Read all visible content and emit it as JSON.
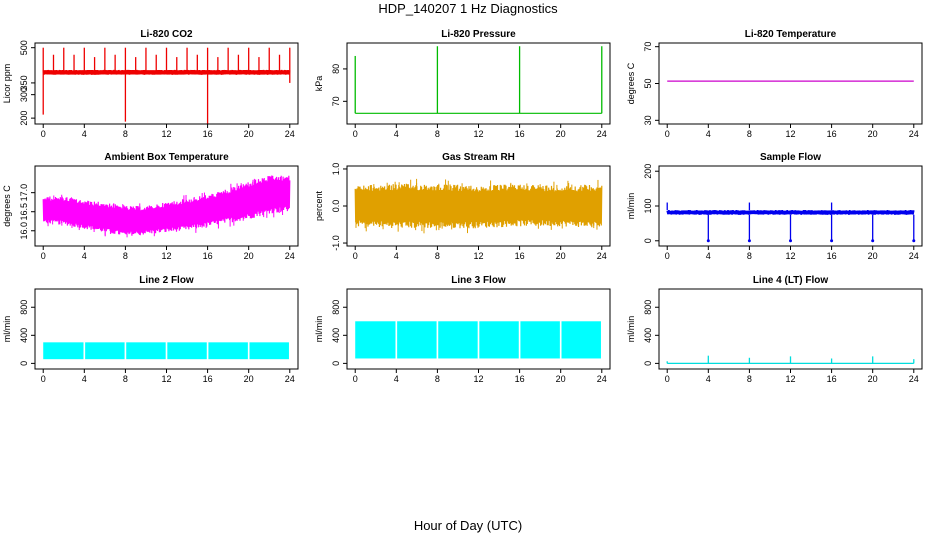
{
  "title": "HDP_140207  1 Hz Diagnostics",
  "xlabel": "Hour of Day (UTC)",
  "chart_data": [
    {
      "id": "co2",
      "type": "line",
      "title": "Li-820 CO2",
      "ylabel": "Licor ppm",
      "color": "#ee0000",
      "ylim": [
        175,
        520
      ],
      "yticks": [
        200,
        300,
        350,
        500
      ],
      "yticklabels": [
        "200",
        "300",
        "350",
        "500"
      ],
      "xlim": [
        -0.8,
        24.8
      ],
      "xticks": [
        0,
        4,
        8,
        12,
        16,
        20,
        24
      ],
      "baseline": 397,
      "band": [
        385,
        405
      ],
      "spikes_up": [
        [
          0,
          500
        ],
        [
          1,
          470
        ],
        [
          2,
          500
        ],
        [
          3,
          470
        ],
        [
          4,
          500
        ],
        [
          5,
          460
        ],
        [
          6,
          500
        ],
        [
          7,
          470
        ],
        [
          8,
          500
        ],
        [
          9,
          460
        ],
        [
          10,
          500
        ],
        [
          11,
          470
        ],
        [
          12,
          500
        ],
        [
          13,
          460
        ],
        [
          14,
          500
        ],
        [
          15,
          470
        ],
        [
          16,
          500
        ],
        [
          17,
          460
        ],
        [
          18,
          500
        ],
        [
          19,
          470
        ],
        [
          20,
          500
        ],
        [
          21,
          460
        ],
        [
          22,
          500
        ],
        [
          23,
          470
        ],
        [
          24,
          500
        ]
      ],
      "spikes_down": [
        [
          0,
          215
        ],
        [
          8,
          185
        ],
        [
          16,
          175
        ],
        [
          24,
          350
        ]
      ]
    },
    {
      "id": "pressure",
      "type": "line",
      "title": "Li-820 Pressure",
      "ylabel": "kPa",
      "color": "#00bb00",
      "ylim": [
        63,
        88
      ],
      "yticks": [
        70,
        80
      ],
      "yticklabels": [
        "70",
        "80"
      ],
      "xlim": [
        -0.8,
        24.8
      ],
      "xticks": [
        0,
        4,
        8,
        12,
        16,
        20,
        24
      ],
      "baseline": 66.3,
      "spikes_up": [
        [
          0,
          84
        ],
        [
          8,
          87
        ],
        [
          16,
          87
        ],
        [
          24,
          87
        ]
      ]
    },
    {
      "id": "licor_temp",
      "type": "line",
      "title": "Li-820 Temperature",
      "ylabel": "degrees C",
      "color": "#cc00cc",
      "ylim": [
        28,
        72
      ],
      "yticks": [
        30,
        50,
        70
      ],
      "yticklabels": [
        "30",
        "50",
        "70"
      ],
      "xlim": [
        -0.8,
        24.8
      ],
      "xticks": [
        0,
        4,
        8,
        12,
        16,
        20,
        24
      ],
      "baseline": 51.3
    },
    {
      "id": "box_temp",
      "type": "area",
      "title": "Ambient Box Temperature",
      "ylabel": "degrees C",
      "color": "#ff00ff",
      "ylim": [
        15.6,
        17.7
      ],
      "yticks": [
        16.0,
        16.5,
        17.0
      ],
      "yticklabels": [
        "16.0",
        "16.5",
        "17.0"
      ],
      "xlim": [
        -0.8,
        24.8
      ],
      "xticks": [
        0,
        4,
        8,
        12,
        16,
        20,
        24
      ],
      "envelope": [
        [
          0,
          16.2,
          16.9
        ],
        [
          2,
          16.15,
          16.9
        ],
        [
          4,
          16.05,
          16.8
        ],
        [
          6,
          15.95,
          16.75
        ],
        [
          8,
          15.85,
          16.65
        ],
        [
          10,
          15.9,
          16.65
        ],
        [
          12,
          15.95,
          16.75
        ],
        [
          14,
          16.0,
          16.85
        ],
        [
          16,
          16.1,
          16.95
        ],
        [
          18,
          16.2,
          17.1
        ],
        [
          20,
          16.3,
          17.3
        ],
        [
          22,
          16.45,
          17.45
        ],
        [
          24,
          16.5,
          17.45
        ]
      ]
    },
    {
      "id": "rh",
      "type": "area",
      "title": "Gas Stream RH",
      "ylabel": "percent",
      "color": "#e0a000",
      "ylim": [
        -1.08,
        1.08
      ],
      "yticks": [
        -1.0,
        0.0,
        1.0
      ],
      "yticklabels": [
        "-1.0",
        "0.0",
        "1.0"
      ],
      "xlim": [
        -0.8,
        24.8
      ],
      "xticks": [
        0,
        4,
        8,
        12,
        16,
        20,
        24
      ],
      "envelope": [
        [
          0,
          -0.55,
          0.55
        ],
        [
          4,
          -0.6,
          0.6
        ],
        [
          8,
          -0.6,
          0.6
        ],
        [
          12,
          -0.6,
          0.55
        ],
        [
          16,
          -0.55,
          0.6
        ],
        [
          20,
          -0.55,
          0.55
        ],
        [
          24,
          -0.6,
          0.6
        ]
      ]
    },
    {
      "id": "sample_flow",
      "type": "line",
      "title": "Sample Flow",
      "ylabel": "ml/min",
      "color": "#0000ee",
      "ylim": [
        -15,
        215
      ],
      "yticks": [
        0,
        100,
        200
      ],
      "yticklabels": [
        "0",
        "100",
        "200"
      ],
      "xlim": [
        -0.8,
        24.8
      ],
      "xticks": [
        0,
        4,
        8,
        12,
        16,
        20,
        24
      ],
      "band": [
        75,
        88
      ],
      "spikes_up": [
        [
          0,
          110
        ],
        [
          8,
          110
        ],
        [
          16,
          110
        ]
      ],
      "spikes_down": [
        [
          4,
          0
        ],
        [
          8,
          0
        ],
        [
          12,
          0
        ],
        [
          16,
          0
        ],
        [
          20,
          0
        ],
        [
          24,
          0
        ]
      ]
    },
    {
      "id": "line2",
      "type": "area",
      "title": "Line 2 Flow",
      "ylabel": "ml/min",
      "color": "#00ffff",
      "ylim": [
        -80,
        1060
      ],
      "yticks": [
        0,
        400,
        800
      ],
      "yticklabels": [
        "0",
        "400",
        "800"
      ],
      "xlim": [
        -0.8,
        24.8
      ],
      "xticks": [
        0,
        4,
        8,
        12,
        16,
        20,
        24
      ],
      "band": [
        60,
        300
      ],
      "gaps": [
        4,
        8,
        12,
        16,
        20
      ]
    },
    {
      "id": "line3",
      "type": "area",
      "title": "Line 3 Flow",
      "ylabel": "ml/min",
      "color": "#00ffff",
      "ylim": [
        -80,
        1060
      ],
      "yticks": [
        0,
        400,
        800
      ],
      "yticklabels": [
        "0",
        "400",
        "800"
      ],
      "xlim": [
        -0.8,
        24.8
      ],
      "xticks": [
        0,
        4,
        8,
        12,
        16,
        20,
        24
      ],
      "band": [
        70,
        600
      ],
      "gaps": [
        4,
        8,
        12,
        16,
        20
      ]
    },
    {
      "id": "line4",
      "type": "line",
      "title": "Line 4 (LT) Flow",
      "ylabel": "ml/min",
      "color": "#00dddd",
      "ylim": [
        -80,
        1060
      ],
      "yticks": [
        0,
        400,
        800
      ],
      "yticklabels": [
        "0",
        "400",
        "800"
      ],
      "xlim": [
        -0.8,
        24.8
      ],
      "xticks": [
        0,
        4,
        8,
        12,
        16,
        20,
        24
      ],
      "baseline": 0,
      "spikes_up": [
        [
          0,
          30
        ],
        [
          4,
          110
        ],
        [
          8,
          80
        ],
        [
          12,
          100
        ],
        [
          16,
          70
        ],
        [
          20,
          100
        ],
        [
          24,
          60
        ]
      ]
    }
  ]
}
